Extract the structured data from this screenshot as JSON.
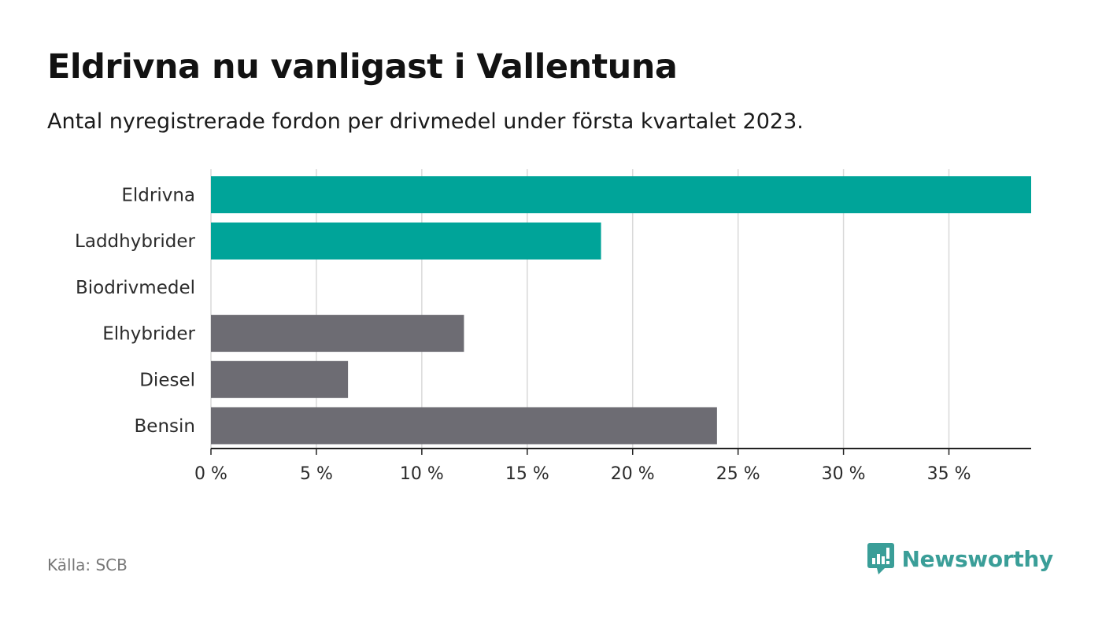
{
  "header": {
    "title": "Eldrivna nu vanligast i Vallentuna",
    "subtitle": "Antal nyregistrerade fordon per drivmedel under första kvartalet 2023."
  },
  "footer": {
    "source": "Källa: SCB",
    "brand": "Newsworthy"
  },
  "colors": {
    "highlight": "#00a499",
    "muted": "#6d6c73",
    "grid": "#d9d9d9",
    "axis": "#222222",
    "brand": "#3a9e98"
  },
  "chart_data": {
    "type": "bar",
    "orientation": "horizontal",
    "categories": [
      "Eldrivna",
      "Laddhybrider",
      "Biodrivmedel",
      "Elhybrider",
      "Diesel",
      "Bensin"
    ],
    "values": [
      38.9,
      18.5,
      0,
      12.0,
      6.5,
      24.0
    ],
    "highlighted": [
      true,
      true,
      true,
      false,
      false,
      false
    ],
    "x_unit": "%",
    "xlim": [
      0,
      38.9
    ],
    "x_ticks": [
      0,
      5,
      10,
      15,
      20,
      25,
      30,
      35
    ],
    "x_tick_labels": [
      "0 %",
      "5 %",
      "10 %",
      "15 %",
      "20 %",
      "25 %",
      "30 %",
      "35 %"
    ],
    "grid": true,
    "legend": "none"
  }
}
